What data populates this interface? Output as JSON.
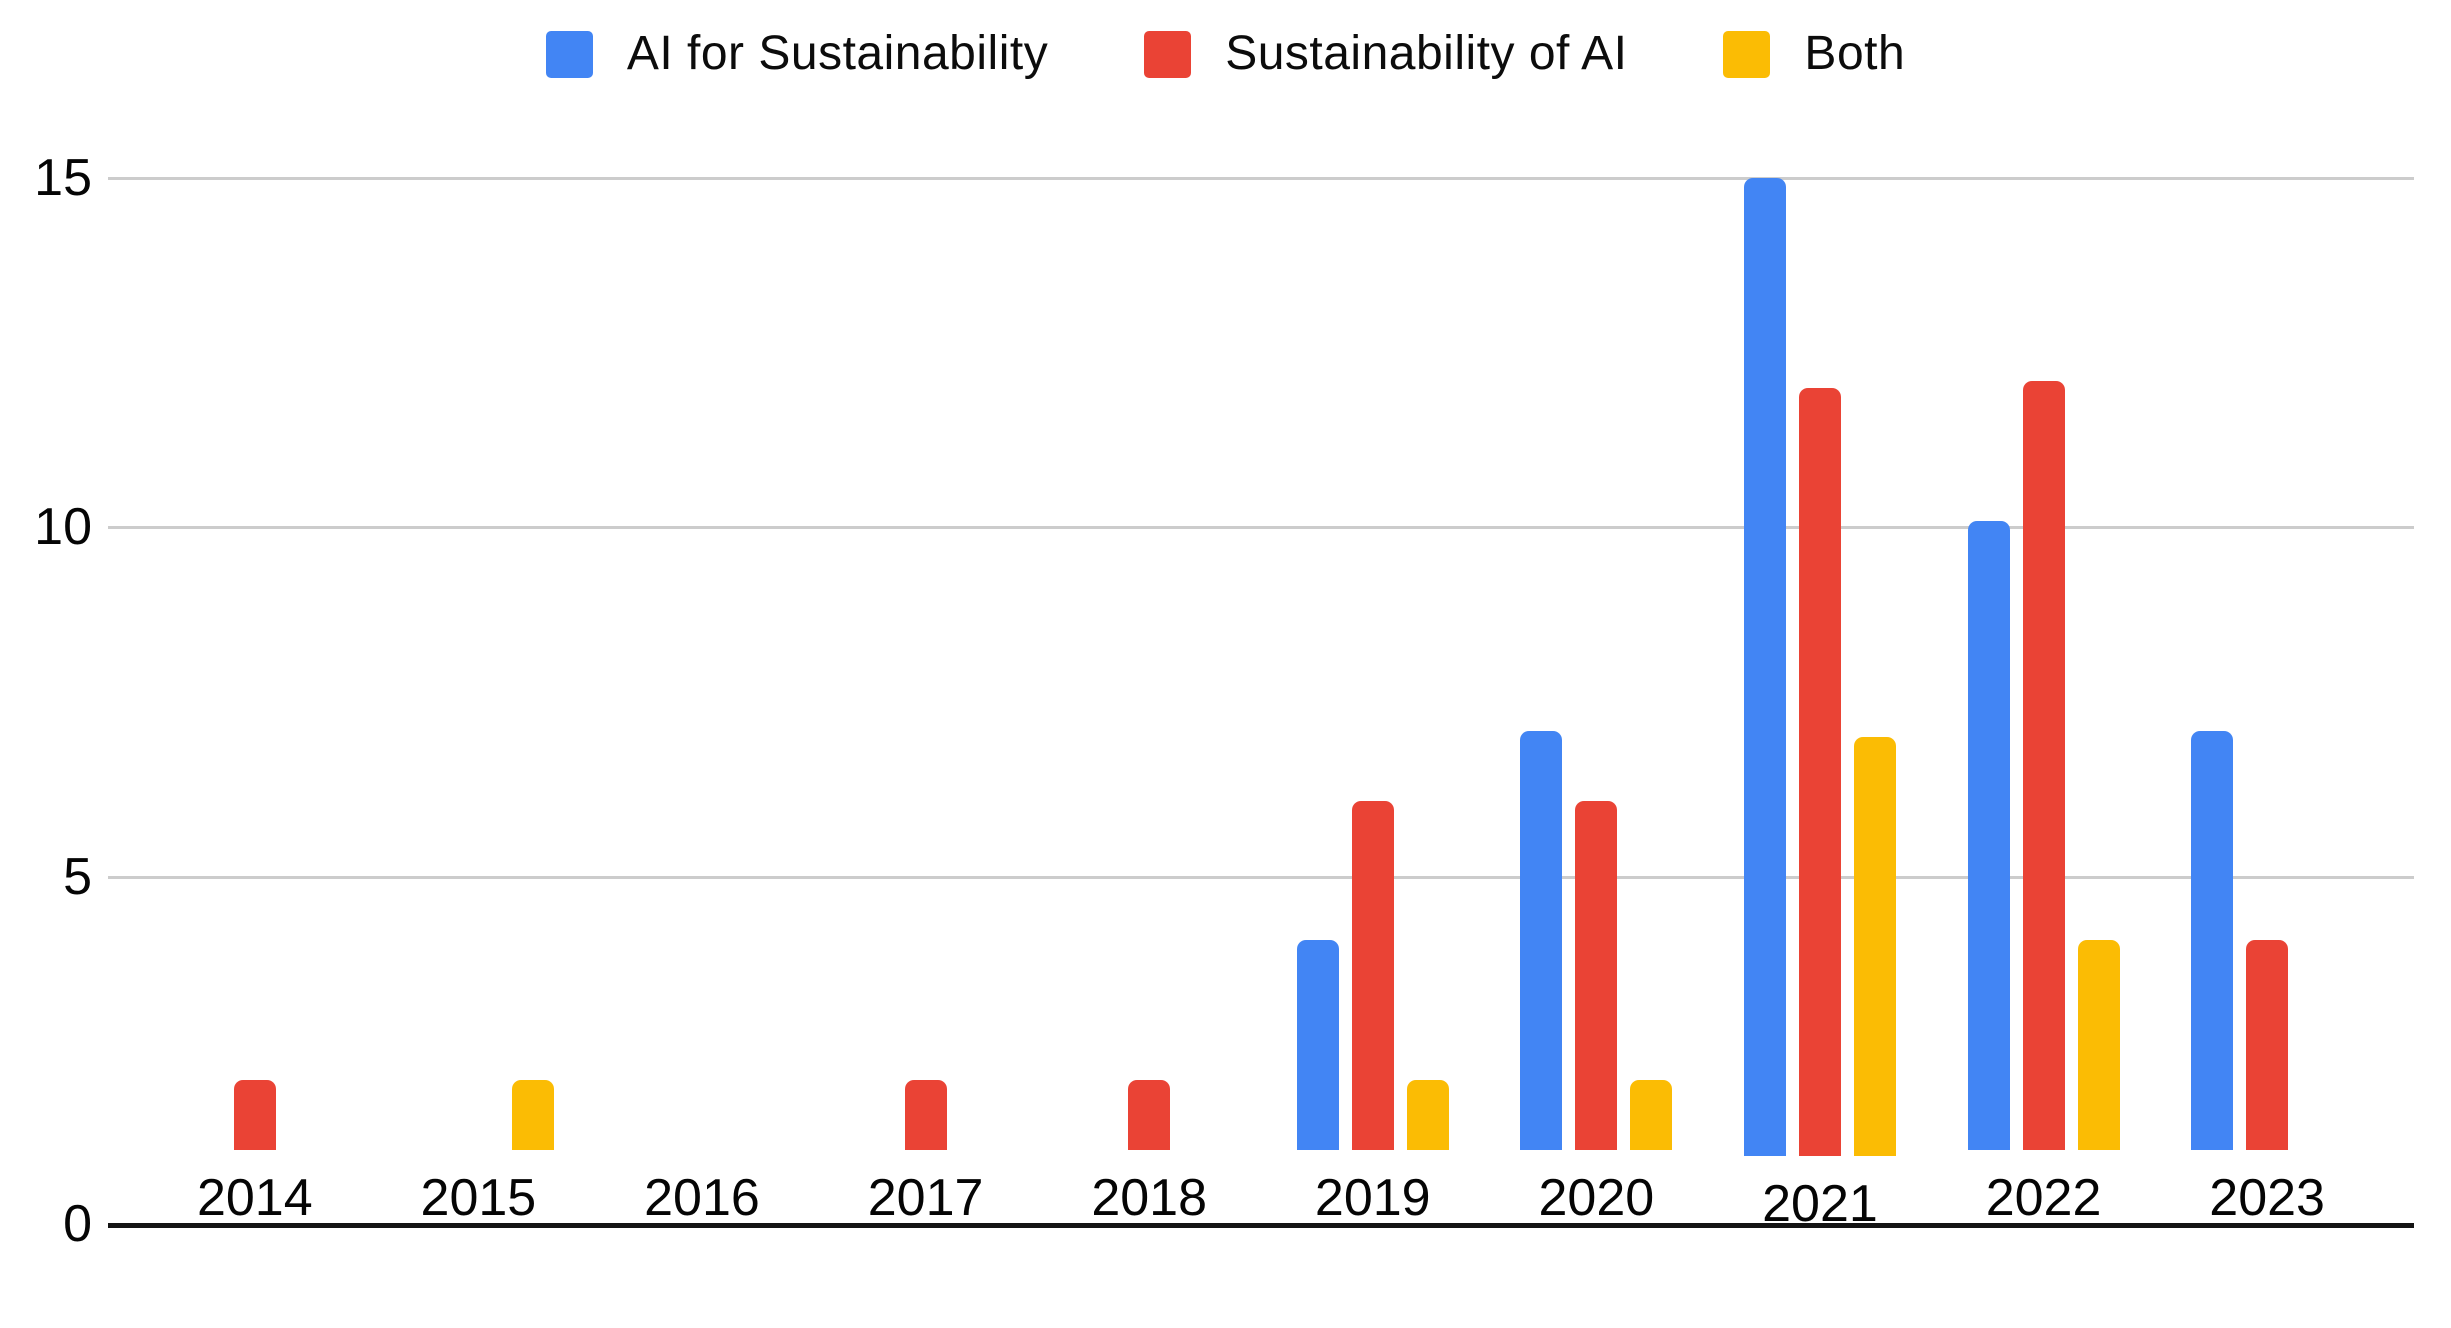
{
  "chart_data": {
    "type": "bar",
    "title": "",
    "categories": [
      "2014",
      "2015",
      "2016",
      "2017",
      "2018",
      "2019",
      "2020",
      "2021",
      "2022",
      "2023"
    ],
    "series": [
      {
        "name": "AI for Sustainability",
        "color": "#4285F4",
        "values": [
          0,
          0,
          0,
          0,
          0,
          3,
          6,
          14,
          9,
          6
        ]
      },
      {
        "name": "Sustainability of AI",
        "color": "#EA4335",
        "values": [
          1,
          0,
          0,
          1,
          1,
          5,
          5,
          11,
          11,
          3
        ]
      },
      {
        "name": "Both",
        "color": "#FBBC04",
        "values": [
          0,
          1,
          0,
          0,
          0,
          1,
          1,
          6,
          3,
          0
        ]
      }
    ],
    "xlabel": "",
    "ylabel": "",
    "ylim": [
      0,
      15
    ],
    "yticks": [
      0,
      5,
      10,
      15
    ],
    "ytick_labels": {
      "t15": "15",
      "t10": "10",
      "t5": "5",
      "t0": "0"
    },
    "grid": "horizontal",
    "gridline_color": "#cccccc",
    "axis_color": "#141414",
    "legend_position": "top",
    "background": "#ffffff"
  }
}
